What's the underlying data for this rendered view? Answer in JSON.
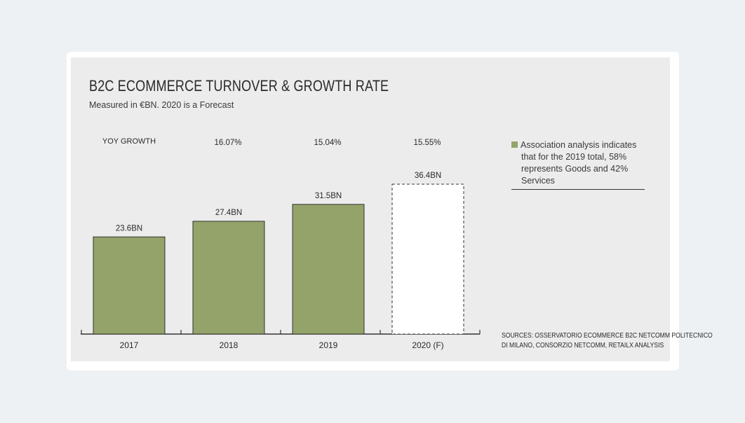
{
  "chart_data": {
    "type": "bar",
    "title": "B2C ECOMMERCE TURNOVER & GROWTH RATE",
    "subtitle": "Measured in €BN. 2020 is a Forecast",
    "categories": [
      "2017",
      "2018",
      "2019",
      "2020 (F)"
    ],
    "values": [
      23.6,
      27.4,
      31.5,
      36.4
    ],
    "value_labels": [
      "23.6BN",
      "27.4BN",
      "31.5BN",
      "36.4BN"
    ],
    "forecast": [
      false,
      false,
      false,
      true
    ],
    "growth_header": "YOY GROWTH",
    "growth": [
      "",
      "16.07%",
      "15.04%",
      "15.55%"
    ],
    "bar_color": "#93a369",
    "forecast_fill": "#ffffff",
    "ylim": [
      0,
      36.4
    ]
  },
  "note": {
    "text": "Association analysis indicates that for the 2019 total, 58% represents Goods and 42% Services",
    "swatch_color": "#93a369"
  },
  "sources": {
    "line1": "SOURCES: OSSERVATORIO ECOMMERCE B2C NETCOMM POLITECNICO",
    "line2": "DI MILANO, CONSORZIO NETCOMM, RETAILX ANALYSIS"
  }
}
